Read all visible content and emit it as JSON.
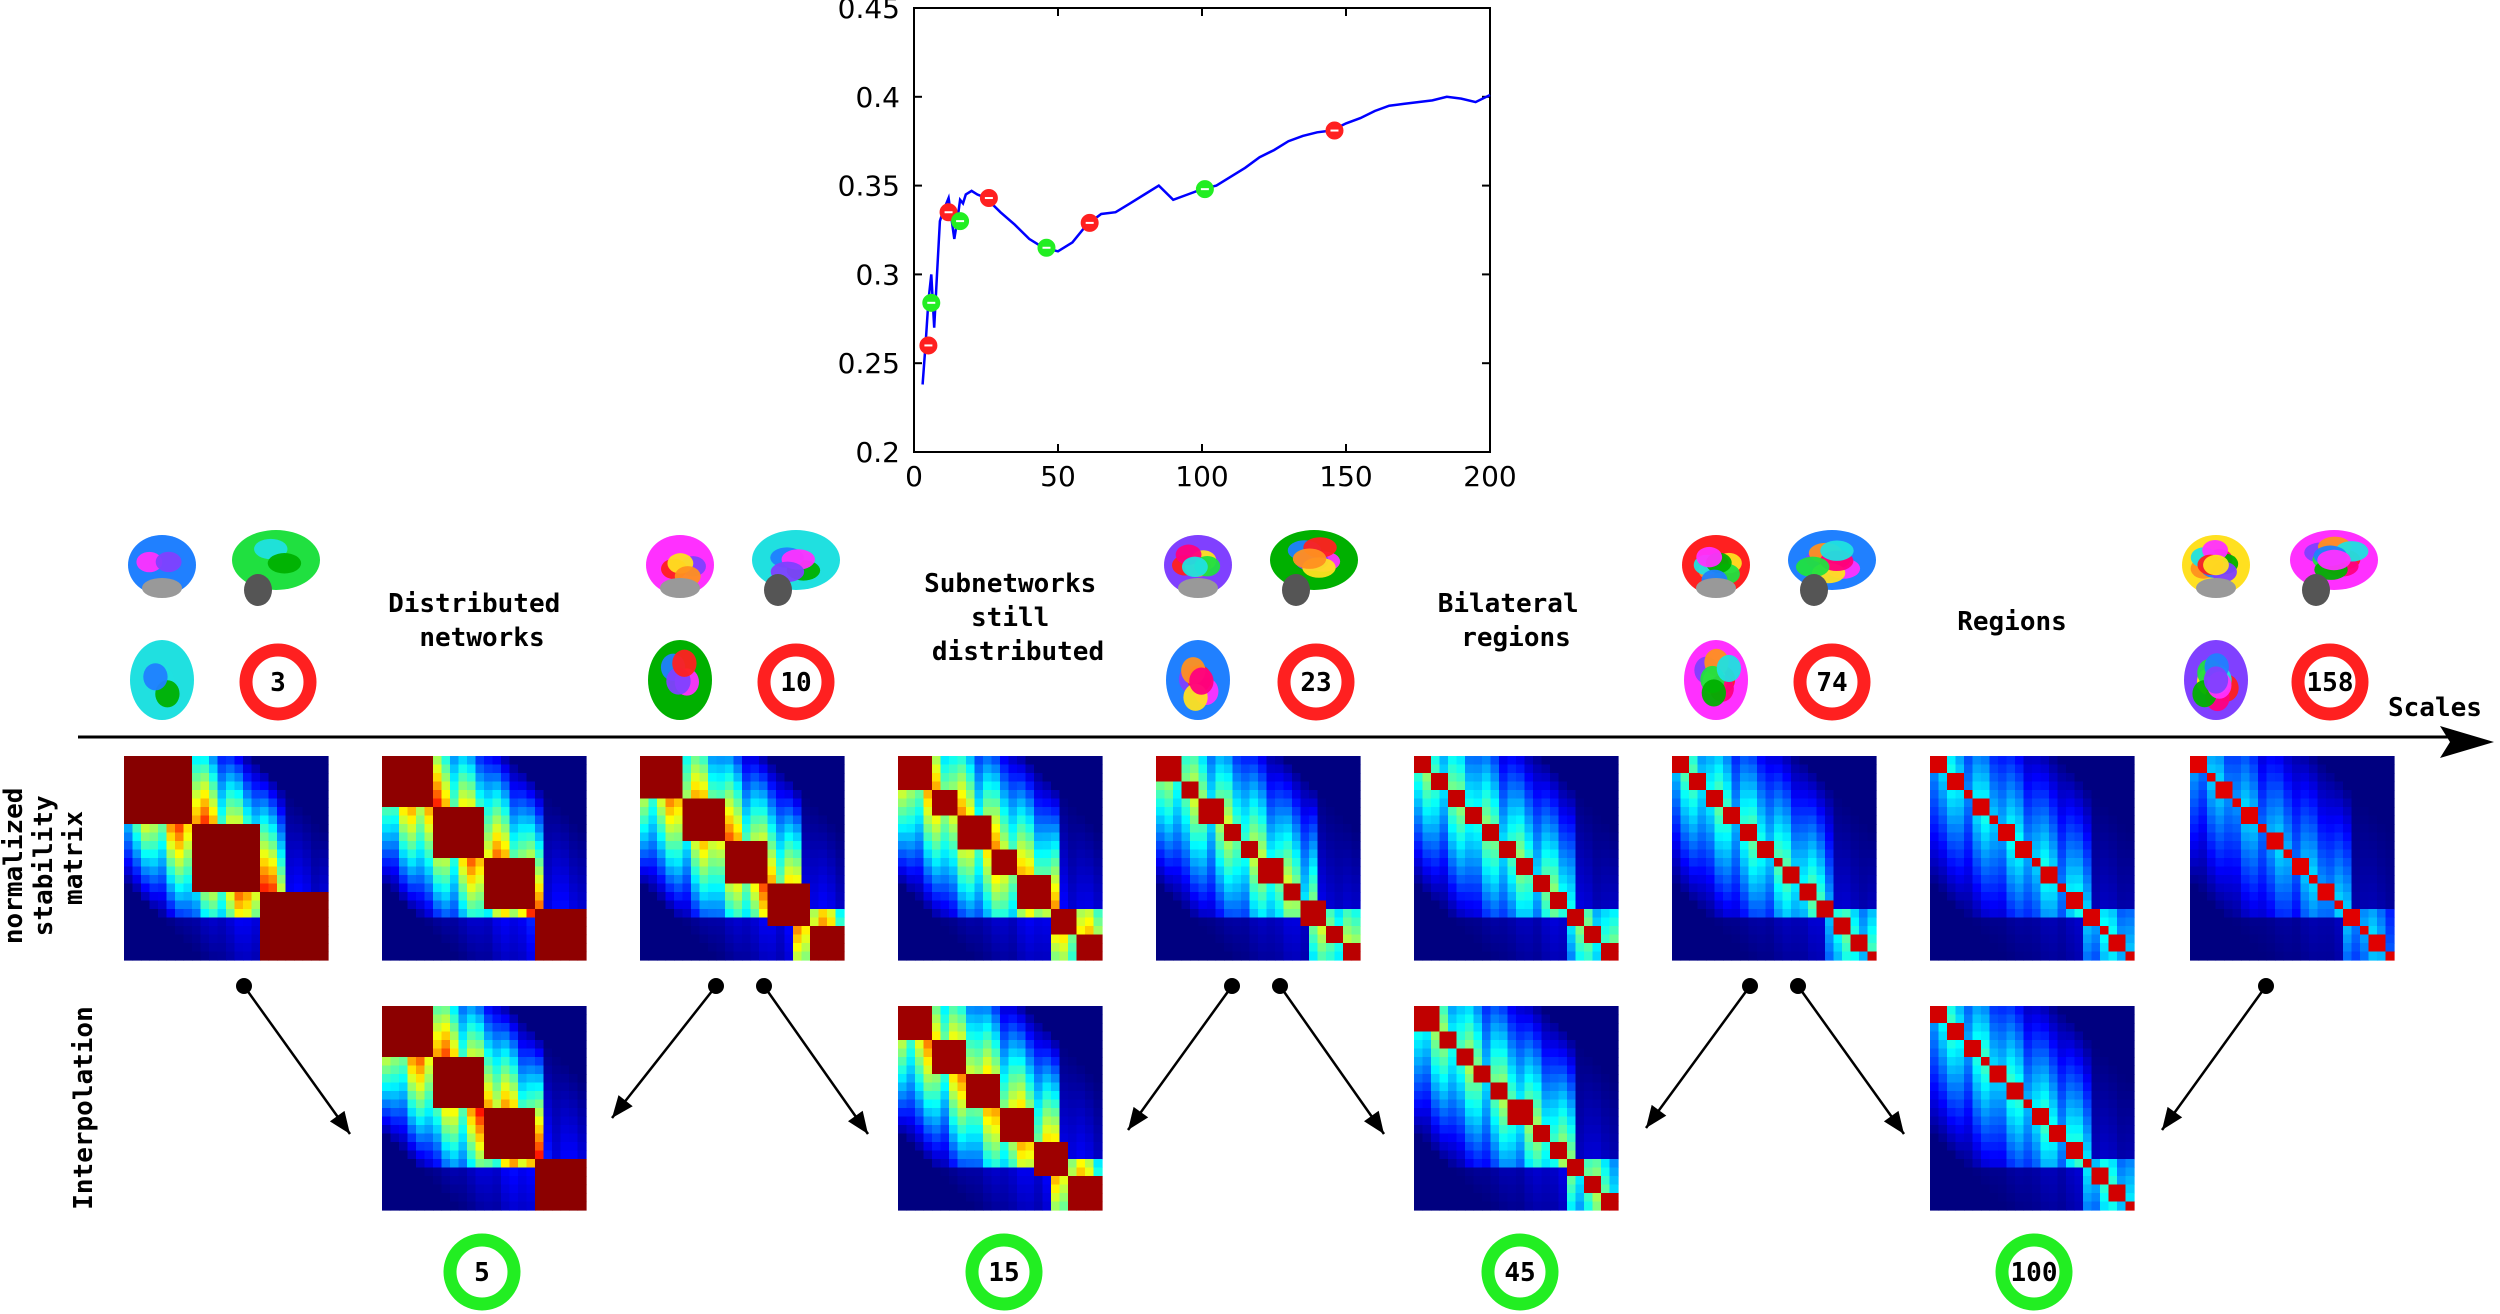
{
  "chart_data": {
    "type": "line",
    "title": "",
    "xlabel": "",
    "ylabel": "",
    "xlim": [
      0,
      200
    ],
    "ylim": [
      0.2,
      0.45
    ],
    "x_ticks": [
      "0",
      "50",
      "100",
      "150",
      "200"
    ],
    "y_ticks": [
      "0.2",
      "0.25",
      "0.3",
      "0.35",
      "0.4",
      "0.45"
    ],
    "line_color": "#0000ff",
    "series": [
      {
        "x": [
          3,
          4,
          5,
          6,
          7,
          8,
          9,
          10,
          12,
          14,
          15,
          16,
          17,
          18,
          20,
          22,
          25,
          30,
          35,
          40,
          45,
          50,
          55,
          60,
          65,
          70,
          75,
          80,
          85,
          90,
          95,
          100,
          105,
          110,
          115,
          120,
          125,
          130,
          135,
          140,
          145,
          150,
          155,
          160,
          165,
          170,
          175,
          180,
          185,
          190,
          195,
          200
        ],
        "y": [
          0.238,
          0.26,
          0.285,
          0.3,
          0.27,
          0.3,
          0.33,
          0.335,
          0.343,
          0.32,
          0.33,
          0.342,
          0.34,
          0.345,
          0.347,
          0.345,
          0.343,
          0.335,
          0.328,
          0.32,
          0.315,
          0.313,
          0.318,
          0.328,
          0.334,
          0.335,
          0.34,
          0.345,
          0.35,
          0.342,
          0.345,
          0.348,
          0.35,
          0.355,
          0.36,
          0.366,
          0.37,
          0.375,
          0.378,
          0.38,
          0.381,
          0.385,
          0.388,
          0.392,
          0.395,
          0.396,
          0.397,
          0.398,
          0.4,
          0.399,
          0.397,
          0.401
        ]
      }
    ],
    "red_markers": [
      {
        "x": 5,
        "y": 0.26
      },
      {
        "x": 12,
        "y": 0.335
      },
      {
        "x": 26,
        "y": 0.343
      },
      {
        "x": 61,
        "y": 0.329
      },
      {
        "x": 146,
        "y": 0.381
      }
    ],
    "green_markers": [
      {
        "x": 6,
        "y": 0.284
      },
      {
        "x": 16,
        "y": 0.33
      },
      {
        "x": 46,
        "y": 0.315
      },
      {
        "x": 101,
        "y": 0.348
      }
    ]
  },
  "colors": {
    "red_ring": "#ff2020",
    "green_ring": "#22ee22",
    "curve": "#0000ff"
  },
  "row_labels": {
    "stability": [
      "normalized",
      "stability",
      "matrix"
    ],
    "interpolation": "Interpolation"
  },
  "axis_label": "Scales",
  "phases": [
    {
      "lines": [
        "Distributed",
        "networks"
      ]
    },
    {
      "lines": [
        "Subnetworks",
        "still",
        "distributed"
      ]
    },
    {
      "lines": [
        "Bilateral",
        "regions"
      ]
    },
    {
      "lines": [
        "Regions"
      ]
    }
  ],
  "scales_computed": [
    "3",
    "10",
    "23",
    "74",
    "158"
  ],
  "scales_interpolated": [
    "5",
    "15",
    "45",
    "100"
  ],
  "matrix_levels": [
    0.95,
    0.9,
    0.85,
    0.78,
    0.62,
    0.55,
    0.5,
    0.42,
    0.36
  ],
  "interp_levels": [
    0.92,
    0.8,
    0.58,
    0.46
  ]
}
